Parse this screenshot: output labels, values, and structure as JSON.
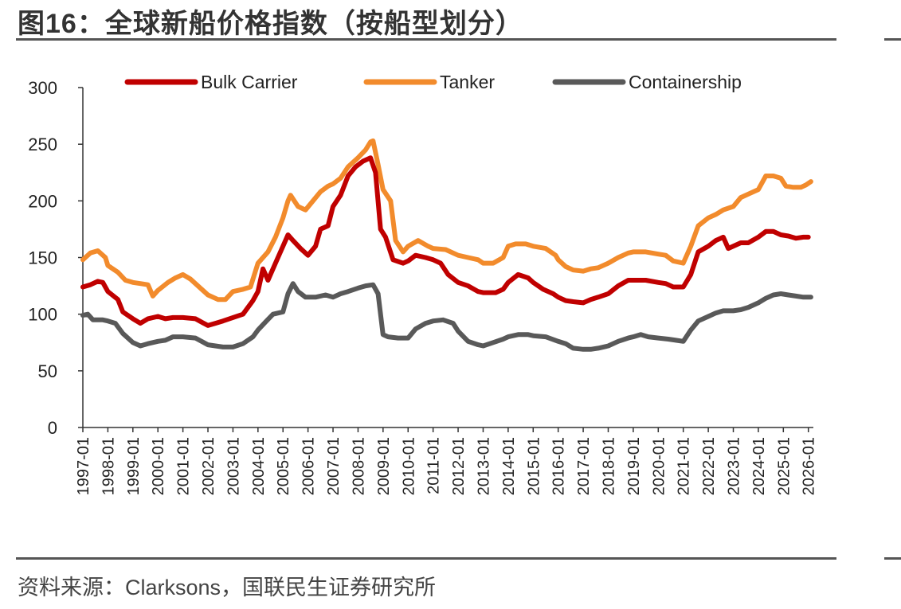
{
  "title": "图16：全球新船价格指数（按船型划分）",
  "source": "资料来源：Clarksons，国联民生证券研究所",
  "chart_data": {
    "type": "line",
    "title": "图16：全球新船价格指数（按船型划分）",
    "xlabel": "",
    "ylabel": "",
    "ylim": [
      0,
      300
    ],
    "yticks": [
      0,
      50,
      100,
      150,
      200,
      250,
      300
    ],
    "xlim": [
      1997.0,
      2026.2
    ],
    "xticks": [
      "1997-01",
      "1998-01",
      "1999-01",
      "2000-01",
      "2001-01",
      "2002-01",
      "2003-01",
      "2004-01",
      "2005-01",
      "2006-01",
      "2007-01",
      "2008-01",
      "2009-01",
      "2010-01",
      "2011-01",
      "2012-01",
      "2013-01",
      "2014-01",
      "2015-01",
      "2016-01",
      "2017-01",
      "2018-01",
      "2019-01",
      "2020-01",
      "2021-01",
      "2022-01",
      "2023-01",
      "2024-01",
      "2025-01",
      "2026-01"
    ],
    "grid": false,
    "legend": "top",
    "series": [
      {
        "name": "Bulk Carrier",
        "color": "#c00000",
        "points": [
          [
            1997.0,
            124
          ],
          [
            1997.3,
            126
          ],
          [
            1997.6,
            129
          ],
          [
            1997.8,
            128
          ],
          [
            1998.0,
            120
          ],
          [
            1998.4,
            113
          ],
          [
            1998.6,
            102
          ],
          [
            1999.0,
            96
          ],
          [
            1999.3,
            92
          ],
          [
            1999.6,
            96
          ],
          [
            2000.0,
            98
          ],
          [
            2000.3,
            96
          ],
          [
            2000.6,
            97
          ],
          [
            2001.0,
            97
          ],
          [
            2001.5,
            96
          ],
          [
            2002.0,
            90
          ],
          [
            2002.3,
            92
          ],
          [
            2002.6,
            94
          ],
          [
            2003.0,
            97
          ],
          [
            2003.4,
            100
          ],
          [
            2003.8,
            112
          ],
          [
            2004.0,
            120
          ],
          [
            2004.2,
            140
          ],
          [
            2004.4,
            130
          ],
          [
            2004.7,
            145
          ],
          [
            2005.0,
            160
          ],
          [
            2005.2,
            170
          ],
          [
            2005.4,
            165
          ],
          [
            2005.7,
            158
          ],
          [
            2006.0,
            152
          ],
          [
            2006.3,
            160
          ],
          [
            2006.5,
            175
          ],
          [
            2006.8,
            178
          ],
          [
            2007.0,
            195
          ],
          [
            2007.3,
            205
          ],
          [
            2007.6,
            222
          ],
          [
            2007.9,
            230
          ],
          [
            2008.2,
            235
          ],
          [
            2008.5,
            238
          ],
          [
            2008.7,
            225
          ],
          [
            2008.9,
            175
          ],
          [
            2009.1,
            168
          ],
          [
            2009.4,
            148
          ],
          [
            2009.8,
            145
          ],
          [
            2010.0,
            147
          ],
          [
            2010.3,
            152
          ],
          [
            2010.7,
            150
          ],
          [
            2011.0,
            148
          ],
          [
            2011.3,
            145
          ],
          [
            2011.6,
            135
          ],
          [
            2012.0,
            128
          ],
          [
            2012.4,
            125
          ],
          [
            2012.8,
            120
          ],
          [
            2013.0,
            119
          ],
          [
            2013.5,
            119
          ],
          [
            2013.8,
            122
          ],
          [
            2014.0,
            128
          ],
          [
            2014.4,
            135
          ],
          [
            2014.8,
            132
          ],
          [
            2015.0,
            128
          ],
          [
            2015.4,
            122
          ],
          [
            2015.8,
            118
          ],
          [
            2016.0,
            115
          ],
          [
            2016.3,
            112
          ],
          [
            2016.6,
            111
          ],
          [
            2017.0,
            110
          ],
          [
            2017.3,
            113
          ],
          [
            2017.6,
            115
          ],
          [
            2018.0,
            118
          ],
          [
            2018.4,
            125
          ],
          [
            2018.8,
            130
          ],
          [
            2019.0,
            130
          ],
          [
            2019.5,
            130
          ],
          [
            2020.0,
            128
          ],
          [
            2020.3,
            127
          ],
          [
            2020.6,
            124
          ],
          [
            2021.0,
            124
          ],
          [
            2021.3,
            135
          ],
          [
            2021.6,
            155
          ],
          [
            2022.0,
            160
          ],
          [
            2022.3,
            165
          ],
          [
            2022.6,
            168
          ],
          [
            2022.8,
            158
          ],
          [
            2023.0,
            160
          ],
          [
            2023.3,
            163
          ],
          [
            2023.6,
            163
          ],
          [
            2024.0,
            168
          ],
          [
            2024.3,
            173
          ],
          [
            2024.6,
            173
          ],
          [
            2024.9,
            170
          ],
          [
            2025.2,
            169
          ],
          [
            2025.5,
            167
          ],
          [
            2025.8,
            168
          ],
          [
            2026.0,
            168
          ]
        ]
      },
      {
        "name": "Tanker",
        "color": "#f28b2c",
        "points": [
          [
            1997.0,
            148
          ],
          [
            1997.3,
            154
          ],
          [
            1997.6,
            156
          ],
          [
            1997.9,
            150
          ],
          [
            1998.0,
            143
          ],
          [
            1998.4,
            137
          ],
          [
            1998.7,
            130
          ],
          [
            1999.0,
            128
          ],
          [
            1999.3,
            127
          ],
          [
            1999.6,
            126
          ],
          [
            1999.8,
            116
          ],
          [
            2000.0,
            121
          ],
          [
            2000.4,
            128
          ],
          [
            2000.7,
            132
          ],
          [
            2001.0,
            135
          ],
          [
            2001.3,
            131
          ],
          [
            2001.6,
            125
          ],
          [
            2002.0,
            117
          ],
          [
            2002.4,
            113
          ],
          [
            2002.7,
            113
          ],
          [
            2003.0,
            120
          ],
          [
            2003.4,
            122
          ],
          [
            2003.7,
            124
          ],
          [
            2004.0,
            145
          ],
          [
            2004.4,
            155
          ],
          [
            2004.7,
            168
          ],
          [
            2005.0,
            185
          ],
          [
            2005.2,
            200
          ],
          [
            2005.3,
            205
          ],
          [
            2005.6,
            195
          ],
          [
            2005.9,
            192
          ],
          [
            2006.2,
            200
          ],
          [
            2006.5,
            208
          ],
          [
            2006.8,
            213
          ],
          [
            2007.0,
            215
          ],
          [
            2007.3,
            220
          ],
          [
            2007.6,
            230
          ],
          [
            2008.0,
            238
          ],
          [
            2008.3,
            245
          ],
          [
            2008.5,
            252
          ],
          [
            2008.6,
            253
          ],
          [
            2008.8,
            232
          ],
          [
            2009.0,
            210
          ],
          [
            2009.3,
            200
          ],
          [
            2009.5,
            165
          ],
          [
            2009.8,
            155
          ],
          [
            2010.0,
            160
          ],
          [
            2010.4,
            165
          ],
          [
            2010.8,
            160
          ],
          [
            2011.0,
            158
          ],
          [
            2011.5,
            157
          ],
          [
            2012.0,
            152
          ],
          [
            2012.4,
            150
          ],
          [
            2012.8,
            148
          ],
          [
            2013.0,
            145
          ],
          [
            2013.4,
            145
          ],
          [
            2013.8,
            150
          ],
          [
            2014.0,
            160
          ],
          [
            2014.3,
            162
          ],
          [
            2014.7,
            162
          ],
          [
            2015.0,
            160
          ],
          [
            2015.5,
            158
          ],
          [
            2015.9,
            152
          ],
          [
            2016.0,
            148
          ],
          [
            2016.3,
            142
          ],
          [
            2016.6,
            139
          ],
          [
            2017.0,
            138
          ],
          [
            2017.3,
            140
          ],
          [
            2017.6,
            141
          ],
          [
            2018.0,
            145
          ],
          [
            2018.4,
            150
          ],
          [
            2018.8,
            154
          ],
          [
            2019.0,
            155
          ],
          [
            2019.5,
            155
          ],
          [
            2020.0,
            153
          ],
          [
            2020.3,
            152
          ],
          [
            2020.6,
            147
          ],
          [
            2021.0,
            145
          ],
          [
            2021.3,
            160
          ],
          [
            2021.6,
            178
          ],
          [
            2022.0,
            185
          ],
          [
            2022.3,
            188
          ],
          [
            2022.6,
            192
          ],
          [
            2023.0,
            195
          ],
          [
            2023.3,
            203
          ],
          [
            2023.6,
            206
          ],
          [
            2024.0,
            210
          ],
          [
            2024.3,
            222
          ],
          [
            2024.6,
            222
          ],
          [
            2024.9,
            220
          ],
          [
            2025.1,
            213
          ],
          [
            2025.4,
            212
          ],
          [
            2025.7,
            212
          ],
          [
            2025.9,
            214
          ],
          [
            2026.1,
            217
          ]
        ]
      },
      {
        "name": "Containership",
        "color": "#595959",
        "points": [
          [
            1997.0,
            99
          ],
          [
            1997.2,
            100
          ],
          [
            1997.4,
            95
          ],
          [
            1997.8,
            95
          ],
          [
            1998.0,
            94
          ],
          [
            1998.3,
            92
          ],
          [
            1998.6,
            83
          ],
          [
            1999.0,
            75
          ],
          [
            1999.3,
            72
          ],
          [
            1999.6,
            74
          ],
          [
            2000.0,
            76
          ],
          [
            2000.3,
            77
          ],
          [
            2000.6,
            80
          ],
          [
            2001.0,
            80
          ],
          [
            2001.5,
            79
          ],
          [
            2002.0,
            73
          ],
          [
            2002.3,
            72
          ],
          [
            2002.6,
            71
          ],
          [
            2003.0,
            71
          ],
          [
            2003.4,
            74
          ],
          [
            2003.8,
            80
          ],
          [
            2004.0,
            86
          ],
          [
            2004.3,
            93
          ],
          [
            2004.6,
            100
          ],
          [
            2005.0,
            102
          ],
          [
            2005.2,
            118
          ],
          [
            2005.4,
            127
          ],
          [
            2005.6,
            120
          ],
          [
            2005.9,
            115
          ],
          [
            2006.3,
            115
          ],
          [
            2006.7,
            117
          ],
          [
            2007.0,
            115
          ],
          [
            2007.3,
            118
          ],
          [
            2007.6,
            120
          ],
          [
            2008.0,
            123
          ],
          [
            2008.3,
            125
          ],
          [
            2008.6,
            126
          ],
          [
            2008.8,
            118
          ],
          [
            2009.0,
            82
          ],
          [
            2009.2,
            80
          ],
          [
            2009.6,
            79
          ],
          [
            2010.0,
            79
          ],
          [
            2010.3,
            87
          ],
          [
            2010.7,
            92
          ],
          [
            2011.0,
            94
          ],
          [
            2011.4,
            95
          ],
          [
            2011.8,
            92
          ],
          [
            2012.0,
            85
          ],
          [
            2012.4,
            76
          ],
          [
            2012.8,
            73
          ],
          [
            2013.0,
            72
          ],
          [
            2013.4,
            75
          ],
          [
            2013.8,
            78
          ],
          [
            2014.0,
            80
          ],
          [
            2014.4,
            82
          ],
          [
            2014.8,
            82
          ],
          [
            2015.0,
            81
          ],
          [
            2015.5,
            80
          ],
          [
            2016.0,
            76
          ],
          [
            2016.3,
            74
          ],
          [
            2016.6,
            70
          ],
          [
            2017.0,
            69
          ],
          [
            2017.3,
            69
          ],
          [
            2017.6,
            70
          ],
          [
            2018.0,
            72
          ],
          [
            2018.4,
            76
          ],
          [
            2018.8,
            79
          ],
          [
            2019.0,
            80
          ],
          [
            2019.3,
            82
          ],
          [
            2019.6,
            80
          ],
          [
            2020.0,
            79
          ],
          [
            2020.4,
            78
          ],
          [
            2020.7,
            77
          ],
          [
            2021.0,
            76
          ],
          [
            2021.3,
            86
          ],
          [
            2021.6,
            94
          ],
          [
            2022.0,
            98
          ],
          [
            2022.3,
            101
          ],
          [
            2022.6,
            103
          ],
          [
            2023.0,
            103
          ],
          [
            2023.3,
            104
          ],
          [
            2023.6,
            106
          ],
          [
            2024.0,
            110
          ],
          [
            2024.3,
            114
          ],
          [
            2024.6,
            117
          ],
          [
            2024.9,
            118
          ],
          [
            2025.2,
            117
          ],
          [
            2025.5,
            116
          ],
          [
            2025.8,
            115
          ],
          [
            2026.1,
            115
          ]
        ]
      }
    ]
  }
}
